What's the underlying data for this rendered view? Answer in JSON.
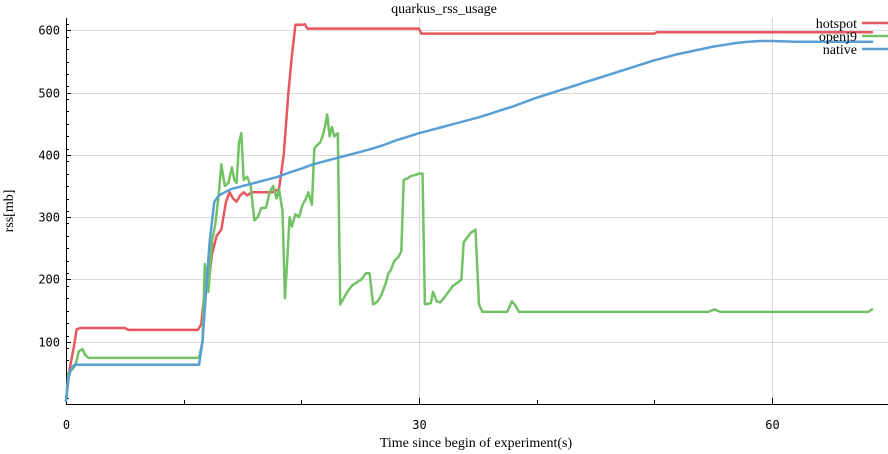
{
  "chart_data": {
    "type": "line",
    "title": "quarkus_rss_usage",
    "xlabel": "Time since begin of experiment(s)",
    "ylabel": "rss[mb]",
    "xlim": [
      0,
      68.5
    ],
    "ylim": [
      0,
      620
    ],
    "x_ticks": [
      0,
      30,
      60
    ],
    "y_ticks": [
      100,
      200,
      300,
      400,
      500,
      600
    ],
    "grid": true,
    "legend_position": "top-right",
    "series": [
      {
        "name": "hotspot",
        "color": "#e8575f",
        "points": [
          [
            0,
            5
          ],
          [
            0.3,
            55
          ],
          [
            0.7,
            95
          ],
          [
            0.9,
            120
          ],
          [
            1.2,
            122
          ],
          [
            5,
            122
          ],
          [
            5.3,
            119
          ],
          [
            11.2,
            119
          ],
          [
            11.5,
            128
          ],
          [
            11.8,
            185
          ],
          [
            12.1,
            190
          ],
          [
            12.4,
            240
          ],
          [
            12.8,
            270
          ],
          [
            13.2,
            280
          ],
          [
            13.6,
            325
          ],
          [
            13.9,
            340
          ],
          [
            14.2,
            330
          ],
          [
            14.5,
            325
          ],
          [
            14.8,
            335
          ],
          [
            15.1,
            340
          ],
          [
            15.4,
            335
          ],
          [
            15.8,
            340
          ],
          [
            16.5,
            340
          ],
          [
            17.5,
            340
          ],
          [
            18.1,
            345
          ],
          [
            18.5,
            400
          ],
          [
            18.9,
            500
          ],
          [
            19.2,
            560
          ],
          [
            19.5,
            609
          ],
          [
            20.1,
            609
          ],
          [
            20.3,
            610
          ],
          [
            20.5,
            603
          ],
          [
            25,
            603
          ],
          [
            30,
            603
          ],
          [
            30.2,
            595
          ],
          [
            40,
            595
          ],
          [
            50,
            595
          ],
          [
            50.2,
            597
          ],
          [
            55,
            597
          ],
          [
            60,
            597
          ],
          [
            68.5,
            597
          ]
        ]
      },
      {
        "name": "openj9",
        "color": "#72c265",
        "points": [
          [
            0,
            5
          ],
          [
            0.2,
            50
          ],
          [
            0.5,
            55
          ],
          [
            0.8,
            62
          ],
          [
            1.1,
            85
          ],
          [
            1.4,
            88
          ],
          [
            1.6,
            80
          ],
          [
            1.9,
            74
          ],
          [
            5,
            74
          ],
          [
            11.3,
            74
          ],
          [
            11.6,
            100
          ],
          [
            11.8,
            225
          ],
          [
            12.1,
            180
          ],
          [
            12.4,
            260
          ],
          [
            12.7,
            290
          ],
          [
            13,
            340
          ],
          [
            13.2,
            385
          ],
          [
            13.5,
            350
          ],
          [
            13.8,
            355
          ],
          [
            14.1,
            380
          ],
          [
            14.3,
            360
          ],
          [
            14.5,
            355
          ],
          [
            14.7,
            420
          ],
          [
            14.9,
            435
          ],
          [
            15.1,
            360
          ],
          [
            15.4,
            365
          ],
          [
            15.7,
            350
          ],
          [
            16,
            295
          ],
          [
            16.3,
            300
          ],
          [
            16.6,
            315
          ],
          [
            17,
            315
          ],
          [
            17.3,
            340
          ],
          [
            17.6,
            350
          ],
          [
            17.9,
            330
          ],
          [
            18.1,
            345
          ],
          [
            18.4,
            310
          ],
          [
            18.6,
            170
          ],
          [
            18.8,
            230
          ],
          [
            19,
            300
          ],
          [
            19.2,
            285
          ],
          [
            19.5,
            305
          ],
          [
            19.8,
            300
          ],
          [
            20.1,
            320
          ],
          [
            20.4,
            330
          ],
          [
            20.6,
            340
          ],
          [
            20.9,
            320
          ],
          [
            21.1,
            410
          ],
          [
            21.3,
            415
          ],
          [
            21.6,
            420
          ],
          [
            21.8,
            430
          ],
          [
            22,
            445
          ],
          [
            22.2,
            465
          ],
          [
            22.4,
            430
          ],
          [
            22.6,
            445
          ],
          [
            22.8,
            430
          ],
          [
            23.1,
            435
          ],
          [
            23.3,
            160
          ],
          [
            23.6,
            170
          ],
          [
            23.9,
            180
          ],
          [
            24.3,
            190
          ],
          [
            24.7,
            195
          ],
          [
            25.1,
            200
          ],
          [
            25.5,
            210
          ],
          [
            25.8,
            210
          ],
          [
            26.1,
            160
          ],
          [
            26.5,
            165
          ],
          [
            26.8,
            175
          ],
          [
            27.2,
            195
          ],
          [
            27.4,
            210
          ],
          [
            27.6,
            215
          ],
          [
            27.9,
            230
          ],
          [
            28.2,
            235
          ],
          [
            28.5,
            245
          ],
          [
            28.7,
            360
          ],
          [
            29,
            362
          ],
          [
            29.3,
            366
          ],
          [
            29.7,
            368
          ],
          [
            30,
            370
          ],
          [
            30.3,
            370
          ],
          [
            30.5,
            160
          ],
          [
            31,
            162
          ],
          [
            31.2,
            180
          ],
          [
            31.5,
            165
          ],
          [
            31.8,
            163
          ],
          [
            32.1,
            170
          ],
          [
            32.5,
            180
          ],
          [
            32.9,
            190
          ],
          [
            33.3,
            195
          ],
          [
            33.6,
            200
          ],
          [
            33.8,
            260
          ],
          [
            34,
            265
          ],
          [
            34.4,
            275
          ],
          [
            34.8,
            280
          ],
          [
            35.1,
            160
          ],
          [
            35.4,
            148
          ],
          [
            36,
            148
          ],
          [
            37.5,
            148
          ],
          [
            37.9,
            165
          ],
          [
            38.2,
            158
          ],
          [
            38.5,
            148
          ],
          [
            40,
            148
          ],
          [
            45,
            148
          ],
          [
            50,
            148
          ],
          [
            54.6,
            148
          ],
          [
            55.1,
            152
          ],
          [
            55.6,
            148
          ],
          [
            60,
            148
          ],
          [
            65,
            148
          ],
          [
            68.2,
            148
          ],
          [
            68.5,
            152
          ]
        ]
      },
      {
        "name": "native",
        "color": "#5a9fd4",
        "points": [
          [
            0,
            5
          ],
          [
            0.2,
            40
          ],
          [
            0.4,
            55
          ],
          [
            0.7,
            63
          ],
          [
            1,
            63
          ],
          [
            5,
            63
          ],
          [
            11.3,
            63
          ],
          [
            11.6,
            100
          ],
          [
            11.9,
            180
          ],
          [
            12.2,
            260
          ],
          [
            12.6,
            325
          ],
          [
            13,
            335
          ],
          [
            13.5,
            340
          ],
          [
            14,
            345
          ],
          [
            15,
            350
          ],
          [
            16,
            355
          ],
          [
            17,
            360
          ],
          [
            18,
            365
          ],
          [
            19,
            372
          ],
          [
            20,
            378
          ],
          [
            21,
            385
          ],
          [
            22,
            390
          ],
          [
            23,
            395
          ],
          [
            24,
            400
          ],
          [
            25,
            405
          ],
          [
            26,
            410
          ],
          [
            27,
            416
          ],
          [
            28,
            423
          ],
          [
            29,
            429
          ],
          [
            30,
            435
          ],
          [
            31,
            440
          ],
          [
            32,
            445
          ],
          [
            33,
            450
          ],
          [
            34,
            455
          ],
          [
            35,
            460
          ],
          [
            36,
            466
          ],
          [
            37,
            472
          ],
          [
            38,
            478
          ],
          [
            39,
            485
          ],
          [
            40,
            492
          ],
          [
            41,
            498
          ],
          [
            42,
            504
          ],
          [
            43,
            510
          ],
          [
            44,
            516
          ],
          [
            45,
            522
          ],
          [
            46,
            528
          ],
          [
            47,
            534
          ],
          [
            48,
            540
          ],
          [
            49,
            546
          ],
          [
            50,
            552
          ],
          [
            51,
            557
          ],
          [
            52,
            562
          ],
          [
            53,
            566
          ],
          [
            54,
            570
          ],
          [
            55,
            574
          ],
          [
            56,
            577
          ],
          [
            57,
            580
          ],
          [
            58,
            582
          ],
          [
            59,
            583
          ],
          [
            60,
            583
          ],
          [
            62,
            582
          ],
          [
            64,
            582
          ],
          [
            66,
            582
          ],
          [
            68.5,
            582
          ]
        ]
      }
    ]
  }
}
